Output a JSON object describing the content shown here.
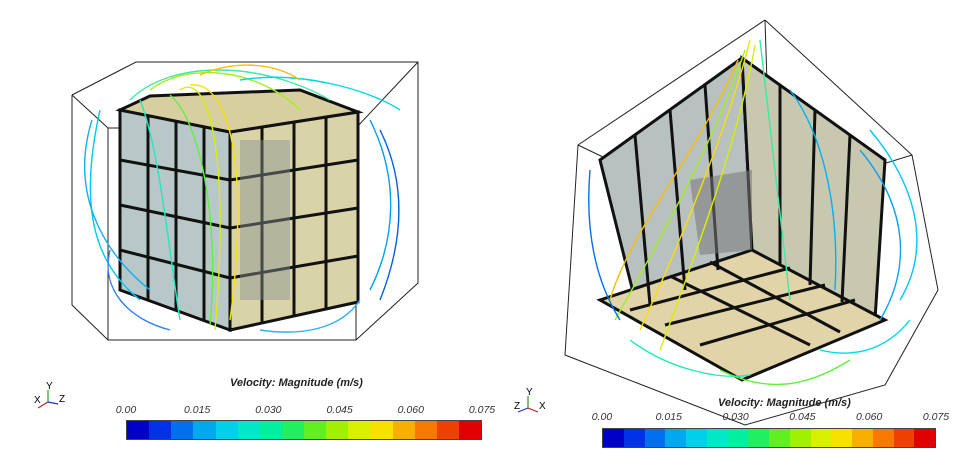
{
  "views": [
    {
      "legend": {
        "title": "Velocity: Magnitude (m/s)",
        "ticks": [
          "0.00",
          "0.015",
          "0.030",
          "0.045",
          "0.060",
          "0.075"
        ]
      },
      "triad": {
        "x": "X",
        "y": "Y",
        "z": "Z"
      }
    },
    {
      "legend": {
        "title": "Velocity: Magnitude (m/s)",
        "ticks": [
          "0.00",
          "0.015",
          "0.030",
          "0.045",
          "0.060",
          "0.075"
        ]
      },
      "triad": {
        "x": "X",
        "y": "Y",
        "z": "Z"
      }
    }
  ],
  "colors": {
    "colormap": [
      "#0000c8",
      "#0030e8",
      "#0070f0",
      "#00a8f0",
      "#00d0e8",
      "#00e8c8",
      "#00f0a0",
      "#20f060",
      "#60f020",
      "#a0f000",
      "#d8f000",
      "#f8e000",
      "#f8b000",
      "#f87800",
      "#f04000",
      "#e00000"
    ],
    "frame": "#c8a830",
    "panel": "#d8d0a0"
  }
}
